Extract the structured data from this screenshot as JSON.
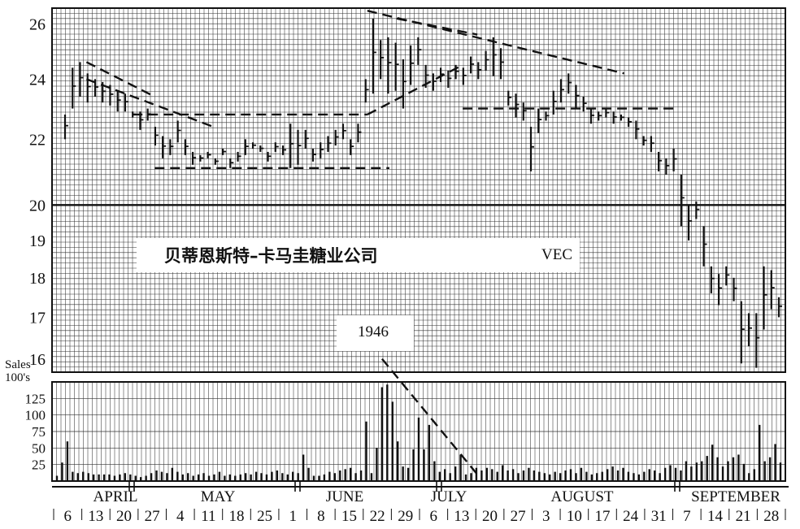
{
  "title": "贝蒂恩斯特–卡马圭糖业公司",
  "symbol": "VEC",
  "year": "1946",
  "volume_label_line1": "Sales",
  "volume_label_line2": "100's",
  "colors": {
    "ink": "#111111",
    "grid": "#333333",
    "background": "#ffffff"
  },
  "chart_data": [
    {
      "type": "bar",
      "name": "price",
      "y_ticks": [
        16,
        17,
        18,
        19,
        20,
        22,
        24,
        26
      ],
      "ylim": [
        15.7,
        26.6
      ],
      "scale": "ratio",
      "grid": true,
      "x_week_labels": [
        "6",
        "13",
        "20",
        "27",
        "4",
        "11",
        "18",
        "25",
        "1",
        "8",
        "15",
        "22",
        "29",
        "6",
        "13",
        "20",
        "27",
        "3",
        "10",
        "17",
        "24",
        "31",
        "7",
        "14",
        "21",
        "28"
      ],
      "x_month_labels": [
        "APRIL",
        "MAY",
        "JUNE",
        "JULY",
        "AUGUST",
        "SEPTEMBER"
      ],
      "ohlc_high_low": [
        [
          22.0,
          22.8
        ],
        [
          23.0,
          24.4
        ],
        [
          23.4,
          24.6
        ],
        [
          23.2,
          24.2
        ],
        [
          23.4,
          24.0
        ],
        [
          23.2,
          23.9
        ],
        [
          23.1,
          23.8
        ],
        [
          22.9,
          23.6
        ],
        [
          22.9,
          23.5
        ],
        [
          22.7,
          22.9
        ],
        [
          22.3,
          22.9
        ],
        [
          22.6,
          23.0
        ],
        [
          21.8,
          22.4
        ],
        [
          21.4,
          22.1
        ],
        [
          21.5,
          22.0
        ],
        [
          21.9,
          22.6
        ],
        [
          21.5,
          22.0
        ],
        [
          21.2,
          21.6
        ],
        [
          21.3,
          21.5
        ],
        [
          21.4,
          21.6
        ],
        [
          21.2,
          21.4
        ],
        [
          21.5,
          21.7
        ],
        [
          21.1,
          21.4
        ],
        [
          21.3,
          21.6
        ],
        [
          21.5,
          22.0
        ],
        [
          21.7,
          21.9
        ],
        [
          21.6,
          21.8
        ],
        [
          21.3,
          21.6
        ],
        [
          21.6,
          21.9
        ],
        [
          21.5,
          21.8
        ],
        [
          21.1,
          22.5
        ],
        [
          21.2,
          22.3
        ],
        [
          21.7,
          22.3
        ],
        [
          21.3,
          21.7
        ],
        [
          21.4,
          21.9
        ],
        [
          21.6,
          22.1
        ],
        [
          21.8,
          22.3
        ],
        [
          22.0,
          22.5
        ],
        [
          21.5,
          22.0
        ],
        [
          21.9,
          22.5
        ],
        [
          23.2,
          24.0
        ],
        [
          23.5,
          26.2
        ],
        [
          24.0,
          25.4
        ],
        [
          23.5,
          25.5
        ],
        [
          23.6,
          25.3
        ],
        [
          23.0,
          24.7
        ],
        [
          23.8,
          25.2
        ],
        [
          24.5,
          25.5
        ],
        [
          23.7,
          24.5
        ],
        [
          23.6,
          24.2
        ],
        [
          23.9,
          24.4
        ],
        [
          23.7,
          24.3
        ],
        [
          24.0,
          24.5
        ],
        [
          23.8,
          24.4
        ],
        [
          24.2,
          24.8
        ],
        [
          24.0,
          24.6
        ],
        [
          24.3,
          25.0
        ],
        [
          24.1,
          25.5
        ],
        [
          24.0,
          25.1
        ],
        [
          23.1,
          23.6
        ],
        [
          22.7,
          23.5
        ],
        [
          22.6,
          23.2
        ],
        [
          21.0,
          22.4
        ],
        [
          22.2,
          23.0
        ],
        [
          22.6,
          22.9
        ],
        [
          22.8,
          23.6
        ],
        [
          23.2,
          24.0
        ],
        [
          23.5,
          24.2
        ],
        [
          23.0,
          23.8
        ],
        [
          22.9,
          23.4
        ],
        [
          22.5,
          23.0
        ],
        [
          22.6,
          22.9
        ],
        [
          22.7,
          23.0
        ],
        [
          22.5,
          22.9
        ],
        [
          22.6,
          22.8
        ],
        [
          22.4,
          22.7
        ],
        [
          22.0,
          22.6
        ],
        [
          21.8,
          22.1
        ],
        [
          21.6,
          22.1
        ],
        [
          21.0,
          21.6
        ],
        [
          20.9,
          21.4
        ],
        [
          21.0,
          21.7
        ],
        [
          19.4,
          20.9
        ],
        [
          19.0,
          20.0
        ],
        [
          19.6,
          20.1
        ],
        [
          18.3,
          19.4
        ],
        [
          17.6,
          18.3
        ],
        [
          17.3,
          18.1
        ],
        [
          17.8,
          18.3
        ],
        [
          17.4,
          18.0
        ],
        [
          15.9,
          17.4
        ],
        [
          16.3,
          17.1
        ],
        [
          15.8,
          17.1
        ],
        [
          16.7,
          18.3
        ],
        [
          17.2,
          18.2
        ],
        [
          17.0,
          17.5
        ]
      ],
      "trend_lines": [
        {
          "from": [
            0.047,
            24.6
          ],
          "to": [
            0.14,
            23.4
          ],
          "style": "dashed"
        },
        {
          "from": [
            0.047,
            24.0
          ],
          "to": [
            0.22,
            22.4
          ],
          "style": "dashed"
        },
        {
          "from": [
            0.11,
            22.8
          ],
          "to": [
            0.43,
            22.8
          ],
          "style": "dashed"
        },
        {
          "from": [
            0.14,
            21.1
          ],
          "to": [
            0.46,
            21.1
          ],
          "style": "dashed"
        },
        {
          "from": [
            0.43,
            22.8
          ],
          "to": [
            0.56,
            24.5
          ],
          "style": "dashed"
        },
        {
          "from": [
            0.43,
            26.5
          ],
          "to": [
            0.78,
            24.2
          ],
          "style": "dashed"
        },
        {
          "from": [
            0.47,
            26.2
          ],
          "to": [
            0.58,
            25.6
          ],
          "style": "dashed"
        },
        {
          "from": [
            0.56,
            23.0
          ],
          "to": [
            0.85,
            23.0
          ],
          "style": "dashed"
        }
      ]
    },
    {
      "type": "bar",
      "name": "volume",
      "y_ticks": [
        25,
        50,
        75,
        100,
        125
      ],
      "ylim": [
        0,
        150
      ],
      "grid": true,
      "values": [
        8,
        28,
        60,
        14,
        12,
        14,
        12,
        10,
        10,
        10,
        10,
        8,
        10,
        12,
        10,
        8,
        6,
        8,
        12,
        16,
        14,
        12,
        20,
        14,
        10,
        12,
        8,
        10,
        12,
        8,
        10,
        14,
        8,
        10,
        8,
        10,
        12,
        10,
        14,
        12,
        10,
        14,
        16,
        12,
        10,
        14,
        12,
        40,
        20,
        8,
        8,
        10,
        14,
        12,
        16,
        18,
        20,
        12,
        16,
        90,
        12,
        50,
        142,
        146,
        120,
        60,
        22,
        20,
        48,
        96,
        48,
        85,
        30,
        14,
        18,
        12,
        22,
        40,
        10,
        12,
        20,
        16,
        20,
        18,
        14,
        24,
        16,
        18,
        12,
        16,
        20,
        16,
        14,
        12,
        10,
        14,
        12,
        16,
        18,
        12,
        20,
        14,
        10,
        12,
        14,
        18,
        22,
        16,
        20,
        14,
        12,
        10,
        14,
        18,
        16,
        12,
        20,
        24,
        20,
        16,
        30,
        22,
        28,
        30,
        38,
        55,
        36,
        22,
        30,
        36,
        40,
        26,
        12,
        18,
        85,
        30,
        36,
        56,
        28
      ],
      "trend_lines": [
        {
          "from": [
            0.45,
            148
          ],
          "to": [
            0.58,
            10
          ],
          "style": "dashed"
        }
      ]
    }
  ]
}
